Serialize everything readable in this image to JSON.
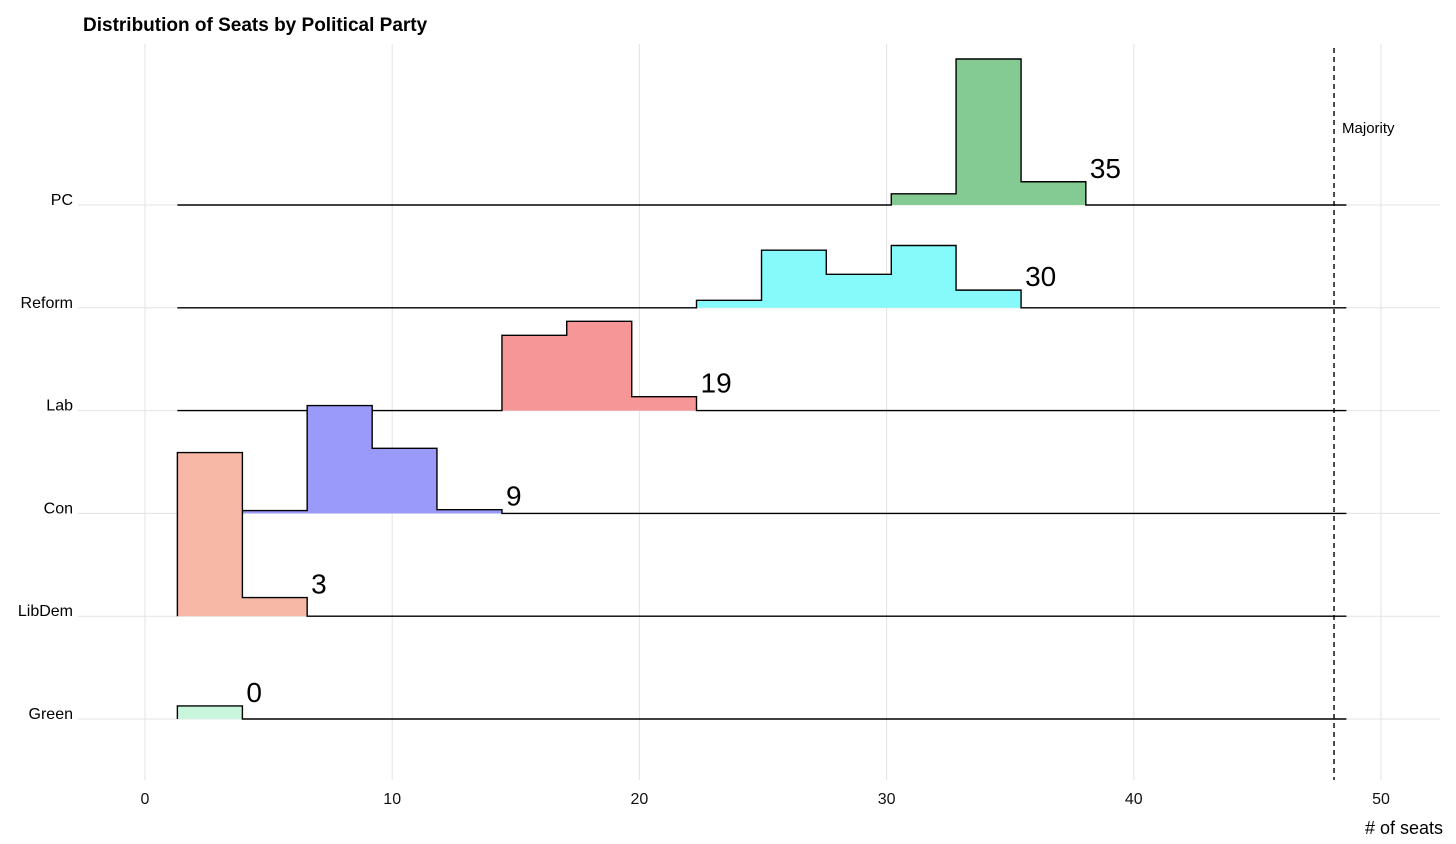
{
  "chart_data": {
    "type": "ridgeline-histogram",
    "title": "Distribution of Seats by Political Party",
    "xlabel": "# of seats",
    "ylabel": "",
    "xlim": [
      0,
      50
    ],
    "x_ticks": [
      0,
      10,
      20,
      30,
      40,
      50
    ],
    "grid": true,
    "legend": "none",
    "bin_width": 2.625,
    "bins_start": 1.31,
    "majority": {
      "label": "Majority",
      "x": 48.1
    },
    "series": [
      {
        "name": "Green",
        "color": "#c8f5dc",
        "label": "0",
        "histogram": [
          {
            "x0": 1.31,
            "x1": 3.94,
            "h": 0.14
          }
        ]
      },
      {
        "name": "LibDem",
        "color": "#f7b8a6",
        "label": "3",
        "histogram": [
          {
            "x0": 1.31,
            "x1": 3.94,
            "h": 1.76
          },
          {
            "x0": 3.94,
            "x1": 6.56,
            "h": 0.2
          }
        ]
      },
      {
        "name": "Con",
        "color": "#9a9afa",
        "label": "9",
        "histogram": [
          {
            "x0": 3.94,
            "x1": 6.56,
            "h": 0.03
          },
          {
            "x0": 6.56,
            "x1": 9.19,
            "h": 1.16
          },
          {
            "x0": 9.19,
            "x1": 11.81,
            "h": 0.7
          },
          {
            "x0": 11.81,
            "x1": 14.44,
            "h": 0.04
          }
        ]
      },
      {
        "name": "Lab",
        "color": "#f79696",
        "label": "19",
        "histogram": [
          {
            "x0": 14.44,
            "x1": 17.06,
            "h": 0.81
          },
          {
            "x0": 17.06,
            "x1": 19.69,
            "h": 0.96
          },
          {
            "x0": 19.69,
            "x1": 22.31,
            "h": 0.15
          }
        ]
      },
      {
        "name": "Reform",
        "color": "#86fafa",
        "label": "30",
        "histogram": [
          {
            "x0": 22.31,
            "x1": 24.94,
            "h": 0.08
          },
          {
            "x0": 24.94,
            "x1": 27.56,
            "h": 0.62
          },
          {
            "x0": 27.56,
            "x1": 30.19,
            "h": 0.36
          },
          {
            "x0": 30.19,
            "x1": 32.81,
            "h": 0.67
          },
          {
            "x0": 32.81,
            "x1": 35.44,
            "h": 0.19
          }
        ]
      },
      {
        "name": "PC",
        "color": "#84cb93",
        "label": "35",
        "histogram": [
          {
            "x0": 30.19,
            "x1": 32.81,
            "h": 0.12
          },
          {
            "x0": 32.81,
            "x1": 35.44,
            "h": 1.57
          },
          {
            "x0": 35.44,
            "x1": 38.06,
            "h": 0.25
          }
        ]
      }
    ]
  }
}
